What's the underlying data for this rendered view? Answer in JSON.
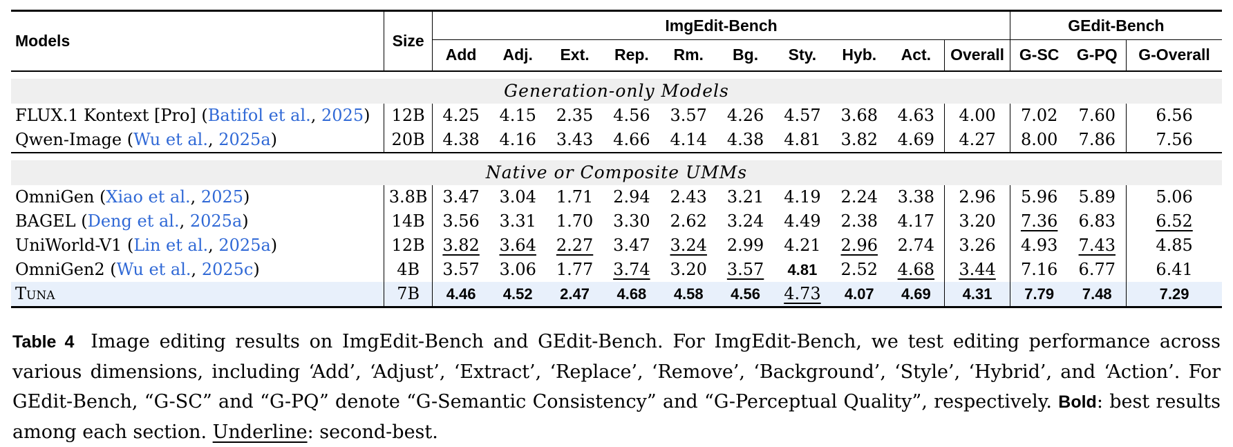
{
  "colors": {
    "link_blue": "#3069d6",
    "section_bg": "#efefef",
    "highlight_row_bg": "#e8f0fb",
    "rule": "#000000"
  },
  "table": {
    "headers": {
      "models": "Models",
      "size": "Size",
      "group_imgedit": "ImgEdit-Bench",
      "group_gedit": "GEdit-Bench",
      "dims": [
        "Add",
        "Adj.",
        "Ext.",
        "Rep.",
        "Rm.",
        "Bg.",
        "Sty.",
        "Hyb.",
        "Act."
      ],
      "overall": "Overall",
      "gedit_cols": [
        "G-SC",
        "G-PQ"
      ],
      "g_overall": "G-Overall"
    },
    "sections": [
      {
        "label": "Generation-only Models",
        "rows": [
          {
            "name": "FLUX.1 Kontext [Pro]",
            "cite_author": "Batifol et al.",
            "cite_year": "2025",
            "size": "12B",
            "values": [
              "4.25",
              "4.15",
              "2.35",
              "4.56",
              "3.57",
              "4.26",
              "4.57",
              "3.68",
              "4.63",
              "4.00",
              "7.02",
              "7.60",
              "6.56"
            ],
            "bold": [],
            "underline": []
          },
          {
            "name": "Qwen-Image",
            "cite_author": "Wu et al.",
            "cite_year": "2025a",
            "size": "20B",
            "values": [
              "4.38",
              "4.16",
              "3.43",
              "4.66",
              "4.14",
              "4.38",
              "4.81",
              "3.82",
              "4.69",
              "4.27",
              "8.00",
              "7.86",
              "7.56"
            ],
            "bold": [],
            "underline": []
          }
        ]
      },
      {
        "label": "Native or Composite UMMs",
        "rows": [
          {
            "name": "OmniGen",
            "cite_author": "Xiao et al.",
            "cite_year": "2025",
            "size": "3.8B",
            "values": [
              "3.47",
              "3.04",
              "1.71",
              "2.94",
              "2.43",
              "3.21",
              "4.19",
              "2.24",
              "3.38",
              "2.96",
              "5.96",
              "5.89",
              "5.06"
            ],
            "bold": [],
            "underline": []
          },
          {
            "name": "BAGEL",
            "cite_author": "Deng et al.",
            "cite_year": "2025a",
            "size": "14B",
            "values": [
              "3.56",
              "3.31",
              "1.70",
              "3.30",
              "2.62",
              "3.24",
              "4.49",
              "2.38",
              "4.17",
              "3.20",
              "7.36",
              "6.83",
              "6.52"
            ],
            "bold": [],
            "underline": [
              10,
              12
            ]
          },
          {
            "name": "UniWorld-V1",
            "cite_author": "Lin et al.",
            "cite_year": "2025a",
            "size": "12B",
            "values": [
              "3.82",
              "3.64",
              "2.27",
              "3.47",
              "3.24",
              "2.99",
              "4.21",
              "2.96",
              "2.74",
              "3.26",
              "4.93",
              "7.43",
              "4.85"
            ],
            "bold": [],
            "underline": [
              0,
              1,
              2,
              4,
              7,
              11
            ]
          },
          {
            "name": "OmniGen2",
            "cite_author": "Wu et al.",
            "cite_year": "2025c",
            "size": "4B",
            "values": [
              "3.57",
              "3.06",
              "1.77",
              "3.74",
              "3.20",
              "3.57",
              "4.81",
              "2.52",
              "4.68",
              "3.44",
              "7.16",
              "6.77",
              "6.41"
            ],
            "bold": [
              6
            ],
            "underline": [
              3,
              5,
              8,
              9
            ]
          },
          {
            "name": "Tuna",
            "smallcaps": true,
            "highlight": true,
            "size": "7B",
            "values": [
              "4.46",
              "4.52",
              "2.47",
              "4.68",
              "4.58",
              "4.56",
              "4.73",
              "4.07",
              "4.69",
              "4.31",
              "7.79",
              "7.48",
              "7.29"
            ],
            "bold": [
              0,
              1,
              2,
              3,
              4,
              5,
              7,
              8,
              9,
              10,
              11,
              12
            ],
            "underline": [
              6
            ]
          }
        ]
      }
    ]
  },
  "caption": {
    "parts": [
      {
        "text": "Table 4",
        "style": "bold"
      },
      {
        "text": " Image editing results on ImgEdit-Bench and GEdit-Bench. For ImgEdit-Bench, we test editing performance across various dimensions, including ‘Add’, ‘Adjust’, ‘Extract’, ‘Replace’, ‘Remove’, ‘Background’, ‘Style’, ‘Hybrid’, and ‘Action’. For GEdit-Bench, “G-SC” and “G-PQ” denote “G-Semantic Consistency” and “G-Perceptual Quality”, respectively. ",
        "style": "normal"
      },
      {
        "text": "Bold",
        "style": "bold"
      },
      {
        "text": ": best results among each section. ",
        "style": "normal"
      },
      {
        "text": "Underline",
        "style": "underline"
      },
      {
        "text": ": second-best.",
        "style": "normal"
      }
    ]
  }
}
